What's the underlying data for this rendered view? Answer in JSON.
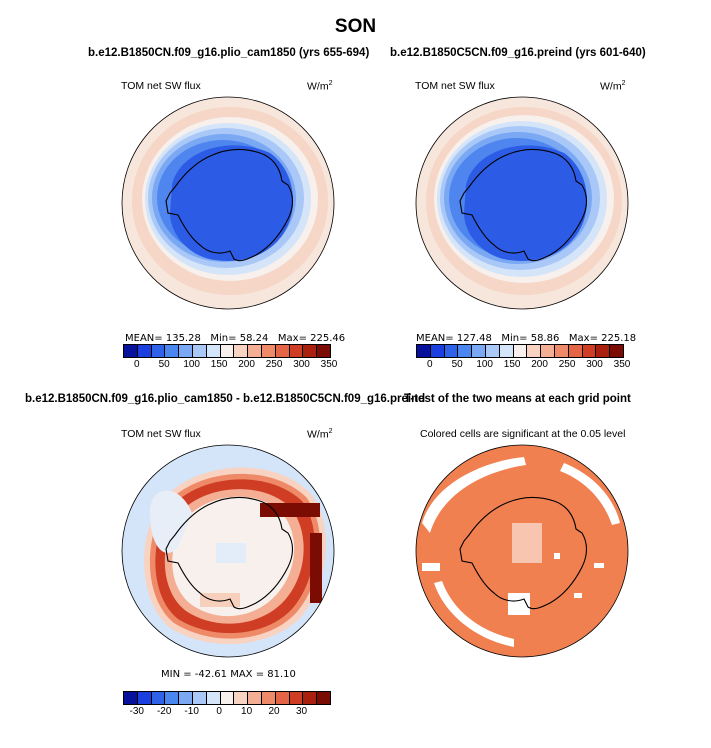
{
  "title": "SON",
  "panels": [
    {
      "id": "plio",
      "case_title": "b.e12.B1850CN.f09_g16.plio_cam1850 (yrs 655-694)",
      "left_label": "TOM net SW flux",
      "right_label": "W/m",
      "right_label_sup": "2",
      "stats": {
        "mean_label": "MEAN=",
        "mean": "135.28",
        "min_label": "Min=",
        "min": "58.24",
        "max_label": "Max=",
        "max": "225.46"
      }
    },
    {
      "id": "preind",
      "case_title": "b.e12.B1850C5CN.f09_g16.preind (yrs 601-640)",
      "left_label": "TOM net SW flux",
      "right_label": "W/m",
      "right_label_sup": "2",
      "stats": {
        "mean_label": "MEAN=",
        "mean": "127.48",
        "min_label": "Min=",
        "min": "58.86",
        "max_label": "Max=",
        "max": "225.18"
      }
    },
    {
      "id": "diff",
      "case_title": "b.e12.B1850CN.f09_g16.plio_cam1850 - b.e12.B1850C5CN.f09_g16.preind",
      "left_label": "TOM net SW flux",
      "right_label": "W/m",
      "right_label_sup": "2",
      "stats_text": "MIN = -42.61  MAX =   81.10"
    },
    {
      "id": "ttest",
      "case_title": "T-test of the two means at each grid point",
      "subtitle": "Colored cells are significant at the 0.05 level"
    }
  ],
  "colorbar_abs": {
    "ticks": [
      "0",
      "50",
      "100",
      "150",
      "200",
      "250",
      "300",
      "350"
    ],
    "colors": [
      "#08119c",
      "#1a3ee0",
      "#2e62e8",
      "#4a86ef",
      "#7aa8f3",
      "#a9c8f7",
      "#d4e4f9",
      "#f7f0ec",
      "#f8d3c2",
      "#f4ae93",
      "#ee8a68",
      "#e46446",
      "#cf3d25",
      "#a9200f",
      "#7a0c04"
    ]
  },
  "colorbar_diff": {
    "ticks": [
      "-30",
      "-20",
      "-10",
      "0",
      "10",
      "20",
      "30"
    ],
    "colors": [
      "#08119c",
      "#1a3ee0",
      "#2e62e8",
      "#4a86ef",
      "#7aa8f3",
      "#a9c8f7",
      "#d4e4f9",
      "#f7f0ec",
      "#f8d3c2",
      "#f4ae93",
      "#ee8a68",
      "#e46446",
      "#cf3d25",
      "#a9200f",
      "#7a0c04"
    ]
  },
  "colors": {
    "deep_blue": "#1f55e3",
    "mid_blue": "#4f85ee",
    "light_blue": "#a9c8f7",
    "pale": "#f6e4da",
    "salmon": "#f4b9a0",
    "sig_orange": "#f08050",
    "dark_red": "#9c1a0c"
  }
}
